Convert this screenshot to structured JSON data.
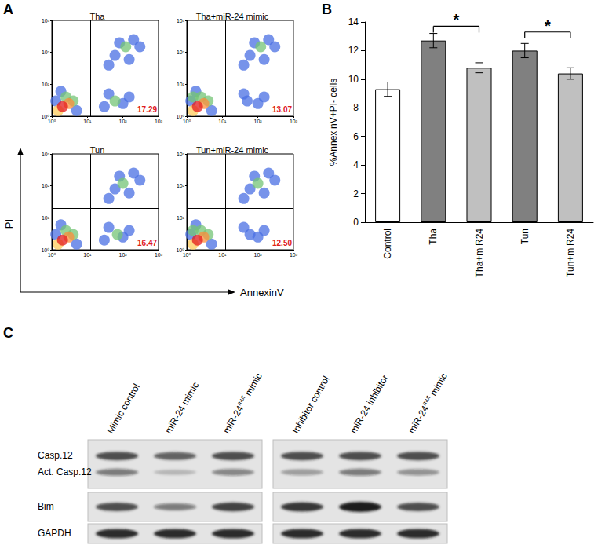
{
  "chart_data": [
    {
      "type": "scatter",
      "title": "Tha",
      "log": true,
      "xlim": [
        1,
        1000
      ],
      "ylim": [
        1,
        1000
      ],
      "xticks": [
        {
          "value": 1,
          "label": "10⁰"
        },
        {
          "value": 10,
          "label": "10¹"
        },
        {
          "value": 100,
          "label": "10²"
        },
        {
          "value": 1000,
          "label": "10³"
        }
      ],
      "yticks": [
        {
          "value": 1,
          "label": "10⁰"
        },
        {
          "value": 10,
          "label": "10¹"
        },
        {
          "value": 100,
          "label": "10²"
        },
        {
          "value": 1000,
          "label": "10³"
        }
      ],
      "x": [
        1.3,
        5,
        1.8,
        100,
        40,
        150,
        30,
        60,
        200,
        80,
        300,
        40,
        150,
        2.5,
        4,
        60,
        120,
        3,
        1.5,
        2
      ],
      "y": [
        3,
        1.5,
        6,
        2.5,
        5,
        4,
        2,
        80,
        250,
        200,
        150,
        40,
        60,
        4,
        3,
        3,
        150,
        2.5,
        1.5,
        2
      ],
      "colors": [
        "#4a6fe3",
        "#4a6fe3",
        "#4a6fe3",
        "#4a6fe3",
        "#4a6fe3",
        "#4a6fe3",
        "#4a6fe3",
        "#4a6fe3",
        "#4a6fe3",
        "#4a6fe3",
        "#4a6fe3",
        "#4a6fe3",
        "#4a6fe3",
        "#74c476",
        "#74c476",
        "#74c476",
        "#74c476",
        "#fd8d3c",
        "#fecc5c",
        "#e31a1c"
      ],
      "gates": {
        "x": 12,
        "y": 20
      },
      "annotation": "17.29"
    },
    {
      "type": "scatter",
      "title": "Tha+miR-24 mimic",
      "log": true,
      "xlim": [
        1,
        1000
      ],
      "ylim": [
        1,
        1000
      ],
      "xticks": [
        {
          "value": 1,
          "label": "10⁰"
        },
        {
          "value": 10,
          "label": "10¹"
        },
        {
          "value": 100,
          "label": "10²"
        },
        {
          "value": 1000,
          "label": "10³"
        }
      ],
      "yticks": [
        {
          "value": 1,
          "label": "10⁰"
        },
        {
          "value": 10,
          "label": "10¹"
        },
        {
          "value": 100,
          "label": "10²"
        },
        {
          "value": 1000,
          "label": "10³"
        }
      ],
      "x": [
        1.3,
        5,
        1.8,
        100,
        40,
        150,
        50,
        60,
        200,
        80,
        300,
        40,
        150,
        2.5,
        4,
        1.5,
        120,
        3,
        1.5,
        2
      ],
      "y": [
        3,
        1.5,
        6,
        2.5,
        5,
        4,
        3,
        80,
        250,
        200,
        150,
        40,
        60,
        4,
        3,
        4,
        150,
        2.5,
        1.5,
        2
      ],
      "colors": [
        "#4a6fe3",
        "#4a6fe3",
        "#4a6fe3",
        "#4a6fe3",
        "#4a6fe3",
        "#4a6fe3",
        "#4a6fe3",
        "#4a6fe3",
        "#4a6fe3",
        "#4a6fe3",
        "#4a6fe3",
        "#4a6fe3",
        "#4a6fe3",
        "#74c476",
        "#74c476",
        "#74c476",
        "#74c476",
        "#fd8d3c",
        "#fecc5c",
        "#e31a1c"
      ],
      "gates": {
        "x": 12,
        "y": 20
      },
      "annotation": "13.07"
    },
    {
      "type": "scatter",
      "title": "Tun",
      "log": true,
      "xlim": [
        1,
        1000
      ],
      "ylim": [
        1,
        1000
      ],
      "xticks": [
        {
          "value": 1,
          "label": "10⁰"
        },
        {
          "value": 10,
          "label": "10¹"
        },
        {
          "value": 100,
          "label": "10²"
        },
        {
          "value": 1000,
          "label": "10³"
        }
      ],
      "yticks": [
        {
          "value": 1,
          "label": "10⁰"
        },
        {
          "value": 10,
          "label": "10¹"
        },
        {
          "value": 100,
          "label": "10²"
        },
        {
          "value": 1000,
          "label": "10³"
        }
      ],
      "x": [
        1.3,
        5,
        1.8,
        100,
        40,
        150,
        30,
        60,
        200,
        80,
        300,
        40,
        150,
        2.5,
        4,
        70,
        100,
        3,
        1.5,
        2
      ],
      "y": [
        3,
        1.5,
        6,
        2.5,
        5,
        4,
        2,
        80,
        250,
        200,
        150,
        40,
        60,
        4,
        3,
        3,
        120,
        2.5,
        1.5,
        2
      ],
      "colors": [
        "#4a6fe3",
        "#4a6fe3",
        "#4a6fe3",
        "#4a6fe3",
        "#4a6fe3",
        "#4a6fe3",
        "#4a6fe3",
        "#4a6fe3",
        "#4a6fe3",
        "#4a6fe3",
        "#4a6fe3",
        "#4a6fe3",
        "#4a6fe3",
        "#74c476",
        "#74c476",
        "#74c476",
        "#74c476",
        "#fd8d3c",
        "#fecc5c",
        "#e31a1c"
      ],
      "gates": {
        "x": 12,
        "y": 20
      },
      "annotation": "16.47"
    },
    {
      "type": "scatter",
      "title": "Tun+miR-24 mimic",
      "log": true,
      "xlim": [
        1,
        1000
      ],
      "ylim": [
        1,
        1000
      ],
      "xticks": [
        {
          "value": 1,
          "label": "10⁰"
        },
        {
          "value": 10,
          "label": "10¹"
        },
        {
          "value": 100,
          "label": "10²"
        },
        {
          "value": 1000,
          "label": "10³"
        }
      ],
      "yticks": [
        {
          "value": 1,
          "label": "10⁰"
        },
        {
          "value": 10,
          "label": "10¹"
        },
        {
          "value": 100,
          "label": "10²"
        },
        {
          "value": 1000,
          "label": "10³"
        }
      ],
      "x": [
        1.3,
        5,
        1.8,
        100,
        40,
        150,
        60,
        60,
        200,
        80,
        300,
        40,
        150,
        2.5,
        4,
        1.5,
        100,
        3,
        1.5,
        2
      ],
      "y": [
        3,
        1.5,
        6,
        2.5,
        5,
        4,
        3,
        80,
        250,
        200,
        150,
        40,
        60,
        4,
        3,
        4,
        120,
        2.5,
        1.5,
        2
      ],
      "colors": [
        "#4a6fe3",
        "#4a6fe3",
        "#4a6fe3",
        "#4a6fe3",
        "#4a6fe3",
        "#4a6fe3",
        "#4a6fe3",
        "#4a6fe3",
        "#4a6fe3",
        "#4a6fe3",
        "#4a6fe3",
        "#4a6fe3",
        "#4a6fe3",
        "#74c476",
        "#74c476",
        "#74c476",
        "#74c476",
        "#fd8d3c",
        "#fecc5c",
        "#e31a1c"
      ],
      "gates": {
        "x": 12,
        "y": 20
      },
      "annotation": "12.50"
    },
    {
      "type": "bar",
      "categories": [
        "Control",
        "Tha",
        "Tha+miR24",
        "Tun",
        "Tun+miR24"
      ],
      "values": [
        9.3,
        12.7,
        10.8,
        12.0,
        10.4
      ],
      "errors": [
        0.5,
        0.5,
        0.35,
        0.5,
        0.4
      ],
      "colors": [
        "#ffffff",
        "#808080",
        "#c0c0c0",
        "#808080",
        "#c0c0c0"
      ],
      "ylabel": "%AnnexinV+PI- cells",
      "ylim": [
        0,
        14
      ],
      "yticks": [
        0,
        2,
        4,
        6,
        8,
        10,
        12,
        14
      ],
      "grid": false,
      "significance": [
        {
          "from": "Tha",
          "to": "Tha+miR24",
          "y": 13.7,
          "label": "*"
        },
        {
          "from": "Tun",
          "to": "Tun+miR24",
          "y": 13.3,
          "label": "*"
        }
      ]
    }
  ],
  "figure": {
    "panel_labels": [
      "A",
      "B",
      "C"
    ],
    "flow_axis_labels": {
      "x": "AnnexinV",
      "y": "PI"
    },
    "blot": {
      "groups": [
        [
          "Mimic control",
          "miR-24 mimic",
          {
            "text": "miR-24",
            "sup": "mut",
            "after": " mimic"
          }
        ],
        [
          "Inhibitor control",
          "miR-24 inhibitor",
          {
            "text": "miR-24",
            "sup": "mut",
            "after": " mimic"
          }
        ]
      ],
      "strips": [
        {
          "bands": [
            {
              "label": "Casp.12",
              "intensity": [
                0.75,
                0.65,
                0.75,
                0.75,
                0.75,
                0.75
              ]
            },
            {
              "label": "Act. Casp.12",
              "intensity": [
                0.5,
                0.2,
                0.45,
                0.35,
                0.5,
                0.4
              ]
            }
          ]
        },
        {
          "bands": [
            {
              "label": "Bim",
              "intensity": [
                0.75,
                0.5,
                0.8,
                0.85,
                1.0,
                0.75
              ]
            }
          ]
        },
        {
          "bands": [
            {
              "label": "GAPDH",
              "intensity": [
                0.9,
                0.9,
                0.9,
                0.9,
                0.9,
                0.9
              ]
            }
          ]
        }
      ]
    }
  }
}
